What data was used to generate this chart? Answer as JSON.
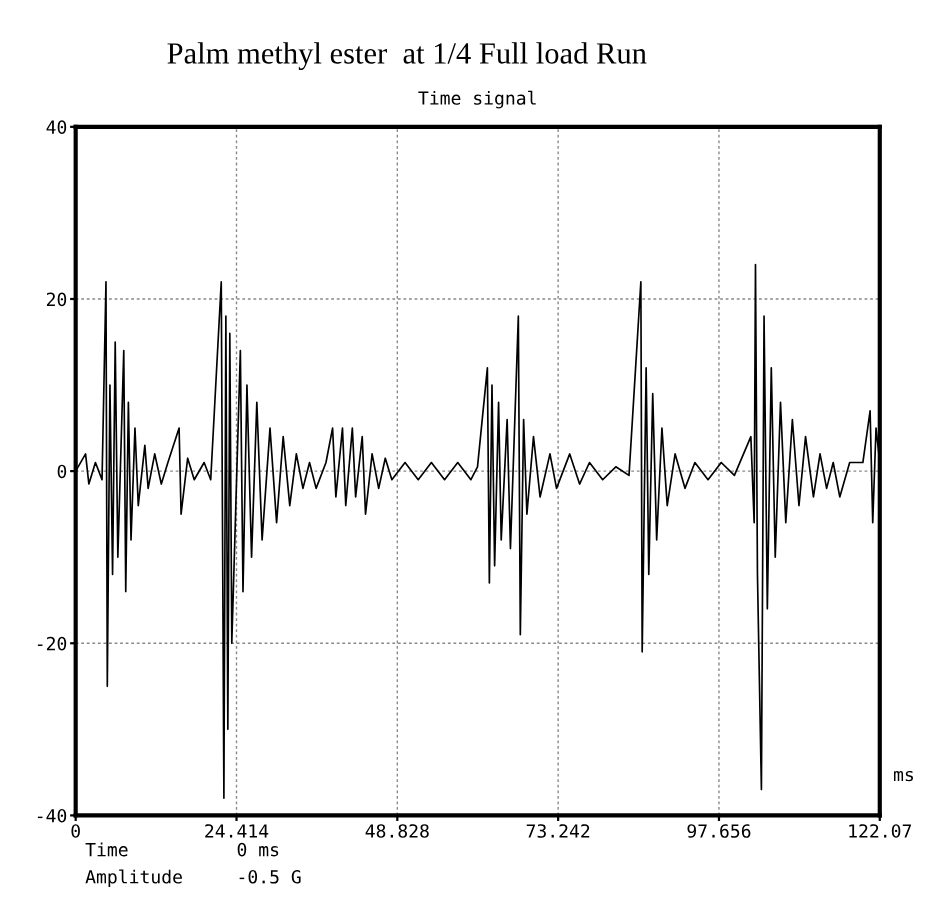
{
  "chart_data": {
    "type": "line",
    "title": "Palm methyl ester  at 1/4 Full load Run",
    "subtitle": "Time signal",
    "xlabel": "ms",
    "annotations": [
      "Time",
      "0 ms",
      "Amplitude",
      "-0.5 G"
    ],
    "xlim": [
      0,
      122.07
    ],
    "xticks": [
      0,
      24.414,
      48.828,
      73.242,
      97.656,
      122.07
    ],
    "ylim": [
      -40,
      40
    ],
    "yticks": [
      -40,
      -20,
      0,
      20,
      40
    ],
    "grid": true,
    "line_style": "solid",
    "marker": "none",
    "series": [
      {
        "color": "#000000",
        "x": [
          0,
          1.5,
          2,
          3,
          4,
          4.6,
          4.8,
          5.2,
          5.6,
          6.0,
          6.4,
          7.3,
          7.6,
          8.0,
          8.4,
          9,
          9.5,
          10.5,
          11,
          12,
          13,
          14,
          15.7,
          16,
          17,
          18,
          19.5,
          20.5,
          22.1,
          22.5,
          22.8,
          23.1,
          23.4,
          23.7,
          25.0,
          25.4,
          26,
          26.7,
          27.5,
          28.3,
          29.5,
          30.5,
          31.5,
          32.5,
          33.5,
          34.5,
          35.5,
          36.5,
          38,
          39,
          39.5,
          40.5,
          41,
          42,
          42.5,
          43.5,
          44,
          45,
          46,
          47,
          48,
          50,
          52,
          54,
          56,
          58,
          60,
          61,
          62.5,
          62.8,
          63.2,
          63.6,
          64.2,
          64.6,
          65.5,
          66,
          67.2,
          67.5,
          68,
          68.5,
          69.5,
          70.5,
          72,
          73,
          75,
          76.5,
          78,
          80,
          82,
          84,
          85.8,
          86,
          86.6,
          87,
          87.6,
          88.2,
          89,
          89.8,
          91,
          92.5,
          94,
          96,
          98,
          100,
          102.5,
          103,
          103.2,
          103.5,
          104.1,
          104.5,
          105,
          105.6,
          106.2,
          107,
          107.8,
          108.8,
          109.8,
          110.8,
          112,
          113,
          114,
          115,
          116,
          117.5,
          119.5,
          120.6,
          121,
          121.5,
          122.07
        ],
        "values": [
          0,
          2,
          -1.5,
          1,
          -1,
          22,
          -25,
          10,
          -12,
          15,
          -10,
          14,
          -14,
          8,
          -8,
          5,
          -4,
          3,
          -2,
          2,
          -1.5,
          1,
          5,
          -5,
          1.5,
          -1,
          1,
          -1,
          22,
          -38,
          18,
          -30,
          16,
          -20,
          14,
          -14,
          10,
          -10,
          8,
          -8,
          5,
          -6,
          4,
          -4,
          2,
          -2,
          1,
          -2,
          1,
          5,
          -3,
          5,
          -4,
          5,
          -3,
          4,
          -5,
          2,
          -2,
          1.5,
          -1,
          1,
          -1,
          1,
          -1,
          1,
          -1,
          0.5,
          12,
          -13,
          10,
          -11,
          8,
          -8,
          6,
          -9,
          18,
          -19,
          6,
          -5,
          4,
          -3,
          2,
          -2,
          2,
          -1.5,
          1,
          -1,
          0.5,
          -0.5,
          22,
          -21,
          12,
          -12,
          9,
          -8,
          5,
          -4,
          2,
          -2,
          1,
          -1,
          1,
          -0.5,
          4,
          -6,
          24,
          -12,
          -37,
          18,
          -16,
          12,
          -10,
          8,
          -6,
          6,
          -4,
          4,
          -3,
          2,
          -2,
          1,
          -3,
          1,
          1,
          7,
          -6,
          5,
          1
        ]
      }
    ]
  }
}
